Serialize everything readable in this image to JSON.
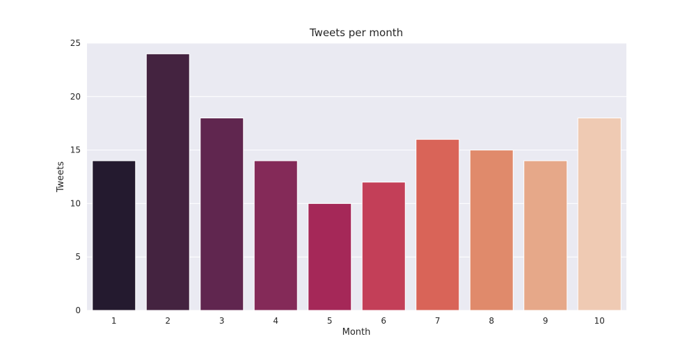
{
  "chart_data": {
    "type": "bar",
    "title": "Tweets per month",
    "xlabel": "Month",
    "ylabel": "Tweets",
    "categories": [
      "1",
      "2",
      "3",
      "4",
      "5",
      "6",
      "7",
      "8",
      "9",
      "10"
    ],
    "values": [
      14,
      24,
      18,
      14,
      10,
      12,
      16,
      15,
      14,
      18
    ],
    "ylim": [
      0,
      25
    ],
    "yticks": [
      "0",
      "5",
      "10",
      "15",
      "20",
      "25"
    ],
    "grid": true,
    "colors": [
      "#241a2f",
      "#442340",
      "#60264f",
      "#842a58",
      "#a52858",
      "#c33f58",
      "#d96458",
      "#e08a6b",
      "#e6a889",
      "#efcab3"
    ],
    "background": "#eaeaf2"
  }
}
